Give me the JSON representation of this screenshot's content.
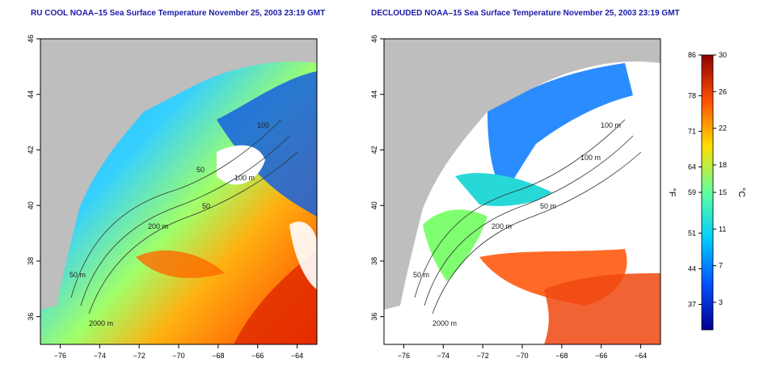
{
  "panels": {
    "left": {
      "title": "RU COOL NOAA–15 Sea Surface Temperature November 25, 2003 23:19 GMT"
    },
    "right": {
      "title": "DECLOUDED NOAA–15 Sea Surface Temperature November 25, 2003 23:19 GMT"
    }
  },
  "axes": {
    "lon_ticks": [
      "−76",
      "−74",
      "−72",
      "−70",
      "−68",
      "−66",
      "−64"
    ],
    "lat_ticks": [
      "36",
      "38",
      "40",
      "42",
      "44",
      "46"
    ],
    "lon_range": [
      -77,
      -63
    ],
    "lat_range": [
      35,
      46
    ]
  },
  "contours": {
    "left": [
      "50 m",
      "200 m",
      "2000 m",
      "100 m",
      "50",
      "100",
      "50"
    ],
    "right": [
      "50 m",
      "200 m",
      "2000 m",
      "100 m",
      "100 m",
      "50 m"
    ]
  },
  "colorbar": {
    "celsius_unit": "°C",
    "fahrenheit_unit": "°F",
    "celsius_ticks": [
      "30",
      "26",
      "22",
      "18",
      "15",
      "11",
      "7",
      "3"
    ],
    "fahrenheit_ticks": [
      "86",
      "78",
      "71",
      "64",
      "59",
      "51",
      "44",
      "37"
    ],
    "range_c": [
      0,
      30
    ],
    "colors": [
      "#00008f",
      "#0050ff",
      "#00cfff",
      "#60ff9f",
      "#ffdf00",
      "#ff5000",
      "#8f0000"
    ]
  },
  "colors": {
    "land": "#bebebe",
    "cloud": "#ffffff",
    "title": "#1a1aa8"
  }
}
